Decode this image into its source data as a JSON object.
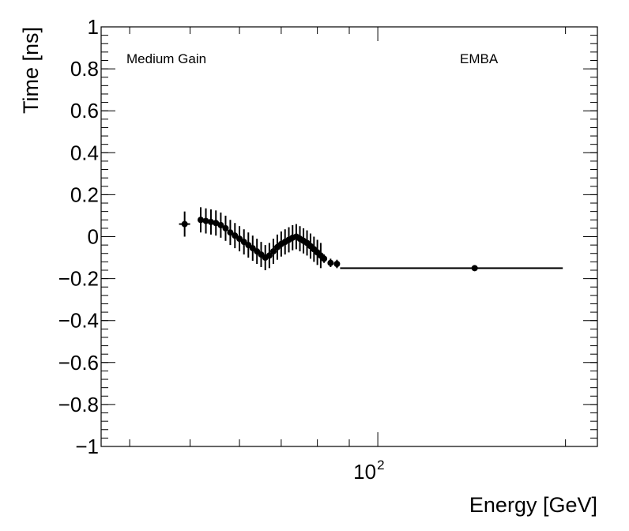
{
  "chart_data": {
    "type": "scatter",
    "title": "",
    "xlabel": "Energy [GeV]",
    "ylabel": "Time [ns]",
    "xscale": "log",
    "xlim": [
      36,
      225
    ],
    "ylim": [
      -1,
      1
    ],
    "grid": false,
    "legend": "none",
    "annotations": [
      "Medium Gain",
      "EMBA"
    ],
    "y_ticks": [
      {
        "value": 1,
        "label": "1"
      },
      {
        "value": 0.8,
        "label": "0.8"
      },
      {
        "value": 0.6,
        "label": "0.6"
      },
      {
        "value": 0.4,
        "label": "0.4"
      },
      {
        "value": 0.2,
        "label": "0.2"
      },
      {
        "value": 0,
        "label": "0"
      },
      {
        "value": -0.2,
        "label": "−0.2"
      },
      {
        "value": -0.4,
        "label": "−0.4"
      },
      {
        "value": -0.6,
        "label": "−0.6"
      },
      {
        "value": -0.8,
        "label": "−0.8"
      },
      {
        "value": -1,
        "label": "−1"
      }
    ],
    "x_major_ticks": [
      {
        "value": 100,
        "base": "10",
        "exp": "2"
      }
    ],
    "series": [
      {
        "color": "#000000",
        "points": [
          {
            "x": 49.0,
            "y": 0.06,
            "xerr": [
              1.0,
              1.0
            ],
            "yerr": 0.06
          },
          {
            "x": 52.0,
            "y": 0.08,
            "xerr": [
              0.5,
              0.5
            ],
            "yerr": 0.06
          },
          {
            "x": 53.0,
            "y": 0.075,
            "xerr": [
              0.5,
              0.5
            ],
            "yerr": 0.06
          },
          {
            "x": 54.0,
            "y": 0.07,
            "xerr": [
              0.5,
              0.5
            ],
            "yerr": 0.06
          },
          {
            "x": 55.0,
            "y": 0.065,
            "xerr": [
              0.5,
              0.5
            ],
            "yerr": 0.06
          },
          {
            "x": 56.0,
            "y": 0.055,
            "xerr": [
              0.5,
              0.5
            ],
            "yerr": 0.06
          },
          {
            "x": 57.0,
            "y": 0.04,
            "xerr": [
              0.5,
              0.5
            ],
            "yerr": 0.06
          },
          {
            "x": 58.0,
            "y": 0.02,
            "xerr": [
              0.5,
              0.5
            ],
            "yerr": 0.06
          },
          {
            "x": 59.0,
            "y": 0.005,
            "xerr": [
              0.5,
              0.5
            ],
            "yerr": 0.06
          },
          {
            "x": 60.0,
            "y": -0.01,
            "xerr": [
              0.5,
              0.5
            ],
            "yerr": 0.06
          },
          {
            "x": 61.0,
            "y": -0.025,
            "xerr": [
              0.5,
              0.5
            ],
            "yerr": 0.06
          },
          {
            "x": 62.0,
            "y": -0.04,
            "xerr": [
              0.5,
              0.5
            ],
            "yerr": 0.06
          },
          {
            "x": 63.0,
            "y": -0.055,
            "xerr": [
              0.5,
              0.5
            ],
            "yerr": 0.06
          },
          {
            "x": 64.0,
            "y": -0.07,
            "xerr": [
              0.5,
              0.5
            ],
            "yerr": 0.06
          },
          {
            "x": 65.0,
            "y": -0.085,
            "xerr": [
              0.5,
              0.5
            ],
            "yerr": 0.06
          },
          {
            "x": 66.0,
            "y": -0.1,
            "xerr": [
              0.5,
              0.5
            ],
            "yerr": 0.06
          },
          {
            "x": 67.0,
            "y": -0.09,
            "xerr": [
              0.5,
              0.5
            ],
            "yerr": 0.06
          },
          {
            "x": 68.0,
            "y": -0.07,
            "xerr": [
              0.5,
              0.5
            ],
            "yerr": 0.06
          },
          {
            "x": 69.0,
            "y": -0.05,
            "xerr": [
              0.5,
              0.5
            ],
            "yerr": 0.06
          },
          {
            "x": 70.0,
            "y": -0.035,
            "xerr": [
              0.5,
              0.5
            ],
            "yerr": 0.06
          },
          {
            "x": 71.0,
            "y": -0.025,
            "xerr": [
              0.5,
              0.5
            ],
            "yerr": 0.06
          },
          {
            "x": 72.0,
            "y": -0.015,
            "xerr": [
              0.5,
              0.5
            ],
            "yerr": 0.06
          },
          {
            "x": 73.0,
            "y": -0.005,
            "xerr": [
              0.5,
              0.5
            ],
            "yerr": 0.06
          },
          {
            "x": 74.0,
            "y": -0.0,
            "xerr": [
              0.5,
              0.5
            ],
            "yerr": 0.06
          },
          {
            "x": 75.0,
            "y": -0.01,
            "xerr": [
              0.5,
              0.5
            ],
            "yerr": 0.06
          },
          {
            "x": 76.0,
            "y": -0.02,
            "xerr": [
              0.5,
              0.5
            ],
            "yerr": 0.06
          },
          {
            "x": 77.0,
            "y": -0.03,
            "xerr": [
              0.5,
              0.5
            ],
            "yerr": 0.06
          },
          {
            "x": 78.0,
            "y": -0.045,
            "xerr": [
              0.5,
              0.5
            ],
            "yerr": 0.06
          },
          {
            "x": 79.0,
            "y": -0.06,
            "xerr": [
              0.5,
              0.5
            ],
            "yerr": 0.06
          },
          {
            "x": 80.0,
            "y": -0.075,
            "xerr": [
              0.5,
              0.5
            ],
            "yerr": 0.06
          },
          {
            "x": 81.0,
            "y": -0.09,
            "xerr": [
              0.5,
              0.5
            ],
            "yerr": 0.06
          },
          {
            "x": 82.0,
            "y": -0.105,
            "xerr": [
              0.5,
              0.5
            ],
            "yerr": 0.02
          },
          {
            "x": 84.0,
            "y": -0.125,
            "xerr": [
              0.5,
              0.5
            ],
            "yerr": 0.02
          },
          {
            "x": 86.0,
            "y": -0.13,
            "xerr": [
              0.5,
              0.5
            ],
            "yerr": 0.02
          },
          {
            "x": 143.0,
            "y": -0.15,
            "xerr": [
              56.0,
              55.0
            ],
            "yerr": 0.0
          }
        ]
      }
    ]
  }
}
